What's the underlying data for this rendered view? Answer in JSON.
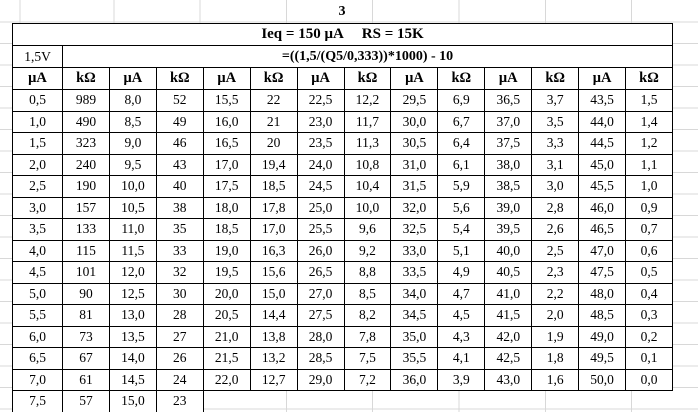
{
  "page_label": "3",
  "header": {
    "ieq_label": "Ieq = 150 μA",
    "rs_label": "RS = 15K",
    "voltage": "1,5V",
    "formula": "=((1,5/(Q5/0,333))*1000) - 10"
  },
  "table": {
    "column_headers": [
      "μA",
      "kΩ",
      "μA",
      "kΩ",
      "μA",
      "kΩ",
      "μA",
      "kΩ",
      "μA",
      "kΩ",
      "μA",
      "kΩ",
      "μA",
      "kΩ"
    ],
    "rows": [
      [
        "0,5",
        "989",
        "8,0",
        "52",
        "15,5",
        "22",
        "22,5",
        "12,2",
        "29,5",
        "6,9",
        "36,5",
        "3,7",
        "43,5",
        "1,5"
      ],
      [
        "1,0",
        "490",
        "8,5",
        "49",
        "16,0",
        "21",
        "23,0",
        "11,7",
        "30,0",
        "6,7",
        "37,0",
        "3,5",
        "44,0",
        "1,4"
      ],
      [
        "1,5",
        "323",
        "9,0",
        "46",
        "16,5",
        "20",
        "23,5",
        "11,3",
        "30,5",
        "6,4",
        "37,5",
        "3,3",
        "44,5",
        "1,2"
      ],
      [
        "2,0",
        "240",
        "9,5",
        "43",
        "17,0",
        "19,4",
        "24,0",
        "10,8",
        "31,0",
        "6,1",
        "38,0",
        "3,1",
        "45,0",
        "1,1"
      ],
      [
        "2,5",
        "190",
        "10,0",
        "40",
        "17,5",
        "18,5",
        "24,5",
        "10,4",
        "31,5",
        "5,9",
        "38,5",
        "3,0",
        "45,5",
        "1,0"
      ],
      [
        "3,0",
        "157",
        "10,5",
        "38",
        "18,0",
        "17,8",
        "25,0",
        "10,0",
        "32,0",
        "5,6",
        "39,0",
        "2,8",
        "46,0",
        "0,9"
      ],
      [
        "3,5",
        "133",
        "11,0",
        "35",
        "18,5",
        "17,0",
        "25,5",
        "9,6",
        "32,5",
        "5,4",
        "39,5",
        "2,6",
        "46,5",
        "0,7"
      ],
      [
        "4,0",
        "115",
        "11,5",
        "33",
        "19,0",
        "16,3",
        "26,0",
        "9,2",
        "33,0",
        "5,1",
        "40,0",
        "2,5",
        "47,0",
        "0,6"
      ],
      [
        "4,5",
        "101",
        "12,0",
        "32",
        "19,5",
        "15,6",
        "26,5",
        "8,8",
        "33,5",
        "4,9",
        "40,5",
        "2,3",
        "47,5",
        "0,5"
      ],
      [
        "5,0",
        "90",
        "12,5",
        "30",
        "20,0",
        "15,0",
        "27,0",
        "8,5",
        "34,0",
        "4,7",
        "41,0",
        "2,2",
        "48,0",
        "0,4"
      ],
      [
        "5,5",
        "81",
        "13,0",
        "28",
        "20,5",
        "14,4",
        "27,5",
        "8,2",
        "34,5",
        "4,5",
        "41,5",
        "2,0",
        "48,5",
        "0,3"
      ],
      [
        "6,0",
        "73",
        "13,5",
        "27",
        "21,0",
        "13,8",
        "28,0",
        "7,8",
        "35,0",
        "4,3",
        "42,0",
        "1,9",
        "49,0",
        "0,2"
      ],
      [
        "6,5",
        "67",
        "14,0",
        "26",
        "21,5",
        "13,2",
        "28,5",
        "7,5",
        "35,5",
        "4,1",
        "42,5",
        "1,8",
        "49,5",
        "0,1"
      ],
      [
        "7,0",
        "61",
        "14,5",
        "24",
        "22,0",
        "12,7",
        "29,0",
        "7,2",
        "36,0",
        "3,9",
        "43,0",
        "1,6",
        "50,0",
        "0,0"
      ],
      [
        "7,5",
        "57",
        "15,0",
        "23"
      ]
    ]
  },
  "colors": {
    "table_border": "#000000",
    "sheet_gridline": "#d8d8d8",
    "text": "#000000",
    "background": "#ffffff"
  }
}
